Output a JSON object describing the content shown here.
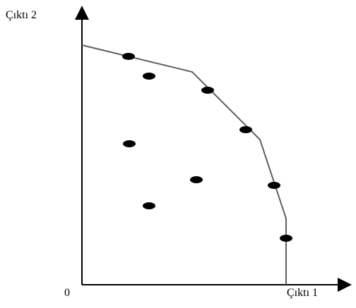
{
  "axes": {
    "x_label": "Çıktı 1",
    "y_label": "Çıktı 2",
    "origin_label": "0"
  },
  "colors": {
    "axis": "#000000",
    "frontier": "#5f5f5f",
    "point": "#000000",
    "background": "#ffffff"
  }
}
